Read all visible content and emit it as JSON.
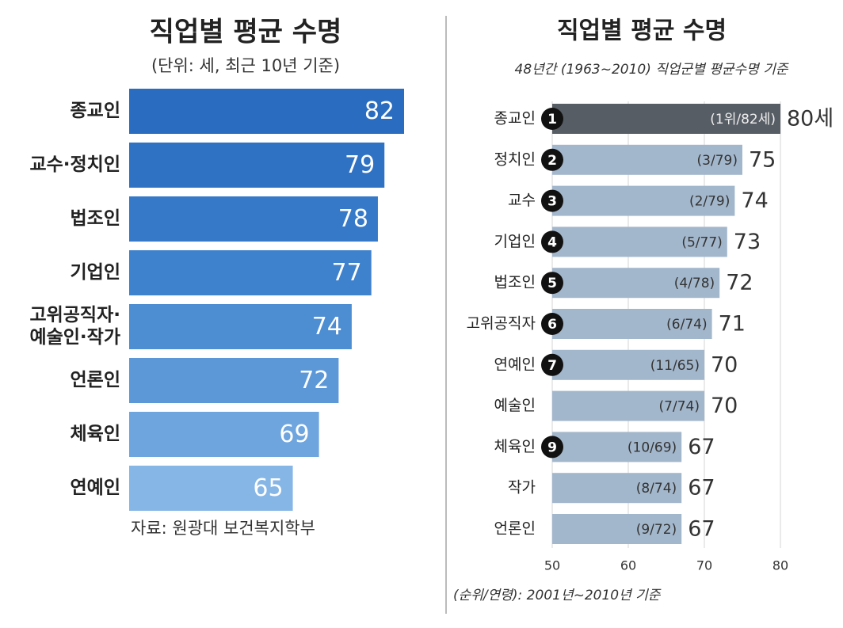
{
  "chart_data": [
    {
      "type": "bar",
      "orientation": "horizontal",
      "title": "직업별 평균 수명",
      "subtitle": "(단위: 세, 최근 10년 기준)",
      "categories": [
        "종교인",
        "교수·정치인",
        "법조인",
        "기업인",
        "고위공직자·\n예술인·작가",
        "언론인",
        "체육인",
        "연예인"
      ],
      "values": [
        82,
        79,
        78,
        77,
        74,
        72,
        69,
        65
      ],
      "colors": [
        "#2a6cc0",
        "#2f72c4",
        "#3579c8",
        "#3e81cc",
        "#4d8dd2",
        "#5c98d8",
        "#6ea5de",
        "#86b6e6"
      ],
      "xlim": [
        40,
        82
      ],
      "source": "자료: 원광대 보건복지학부"
    },
    {
      "type": "bar",
      "orientation": "horizontal",
      "title": "직업별 평균 수명",
      "subtitle": "48년간 (1963~2010) 직업군별 평균수명 기준",
      "categories": [
        "종교인",
        "정치인",
        "교수",
        "기업인",
        "법조인",
        "고위공직자",
        "연예인",
        "예술인",
        "체육인",
        "작가",
        "언론인"
      ],
      "ranks": [
        1,
        2,
        3,
        4,
        5,
        6,
        7,
        null,
        9,
        null,
        null
      ],
      "values": [
        80,
        75,
        74,
        73,
        72,
        71,
        70,
        70,
        67,
        67,
        67
      ],
      "value_labels": [
        "80세",
        "75",
        "74",
        "73",
        "72",
        "71",
        "70",
        "70",
        "67",
        "67",
        "67"
      ],
      "inner_labels": [
        "(1위/82세)",
        "(3/79)",
        "(2/79)",
        "(5/77)",
        "(4/78)",
        "(6/74)",
        "(11/65)",
        "(7/74)",
        "(10/69)",
        "(8/74)",
        "(9/72)"
      ],
      "colors": [
        "#575d65",
        "#a3b7cc",
        "#a3b7cc",
        "#a3b7cc",
        "#a3b7cc",
        "#a3b7cc",
        "#a3b7cc",
        "#a3b7cc",
        "#a3b7cc",
        "#a3b7cc",
        "#a3b7cc"
      ],
      "xlim": [
        50,
        80
      ],
      "xticks": [
        50,
        60,
        70,
        80
      ],
      "grid": true,
      "footnote": "(순위/연령): 2001년~2010년 기준"
    }
  ]
}
